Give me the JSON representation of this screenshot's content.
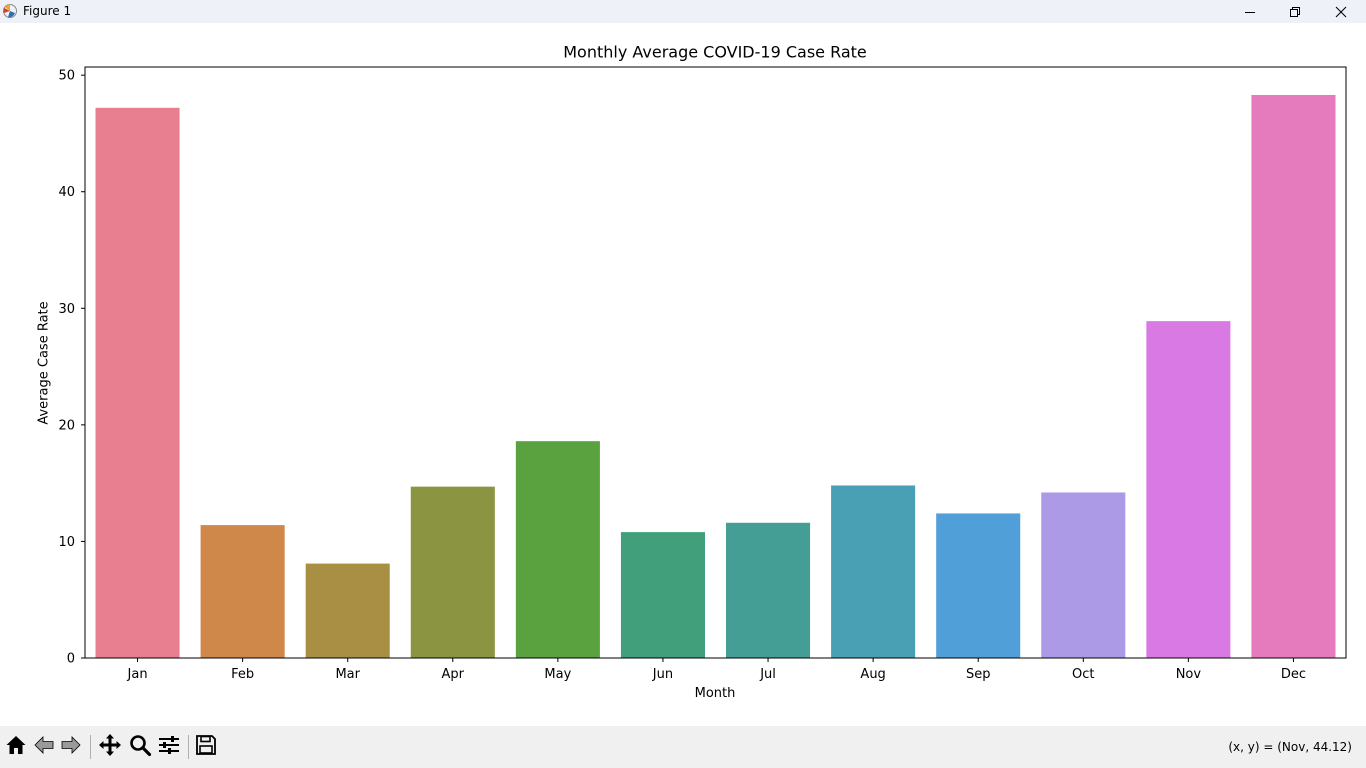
{
  "window": {
    "title": "Figure 1",
    "icons": {
      "app": "matplotlib-icon",
      "minimize": "minimize-icon",
      "maximize": "restore-icon",
      "close": "close-icon"
    }
  },
  "toolbar": {
    "buttons": [
      "home-icon",
      "back-arrow-icon",
      "forward-arrow-icon",
      "pan-icon",
      "zoom-icon",
      "configure-subplots-icon",
      "save-icon"
    ],
    "coords_text": "(x, y) = (Nov, 44.12)"
  },
  "chart_data": {
    "type": "bar",
    "title": "Monthly Average COVID-19 Case Rate",
    "xlabel": "Month",
    "ylabel": "Average Case Rate",
    "categories": [
      "Jan",
      "Feb",
      "Mar",
      "Apr",
      "May",
      "Jun",
      "Jul",
      "Aug",
      "Sep",
      "Oct",
      "Nov",
      "Dec"
    ],
    "values": [
      47.2,
      11.4,
      8.1,
      14.7,
      18.6,
      10.8,
      11.6,
      14.8,
      12.4,
      14.2,
      28.9,
      48.3
    ],
    "colors": [
      "#e77f91",
      "#d0874a",
      "#a88f44",
      "#8b9541",
      "#5aa240",
      "#41a07b",
      "#449e96",
      "#49a0b4",
      "#519fd8",
      "#ac9ae6",
      "#d97ae4",
      "#e57bbc"
    ],
    "yticks": [
      0,
      10,
      20,
      30,
      40,
      50
    ],
    "ylim": [
      0,
      50.7
    ],
    "grid": false
  }
}
